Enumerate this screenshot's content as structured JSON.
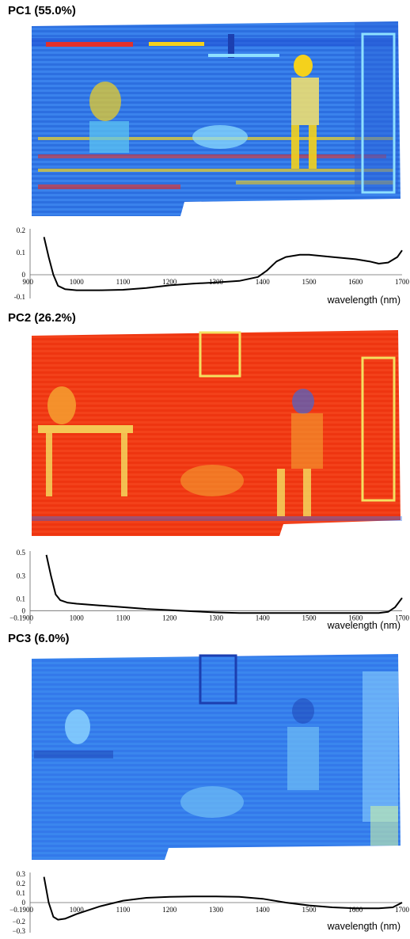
{
  "colors": {
    "pc1_base": "#2f78e8",
    "pc1_hot": "#e2302a",
    "pc1_warm": "#f4d11c",
    "pc2_base": "#f23a12",
    "pc2_cool": "#2a6cf0",
    "pc3_base": "#3a86ee",
    "pc3_light": "#8fd6ff",
    "curve": "#000000"
  },
  "panels": [
    {
      "title": "PC1 (55.0%)",
      "image_description_icon": "pc1-falsecolor-image",
      "chart_data": {
        "type": "line",
        "title": "",
        "xlabel": "wavelength (nm)",
        "ylabel": "",
        "xlim": [
          900,
          1700
        ],
        "ylim": [
          -0.1,
          0.2
        ],
        "x_ticks": [
          "900",
          "1000",
          "1100",
          "1200",
          "1300",
          "1400",
          "1500",
          "1600",
          "1700"
        ],
        "y_ticks": [
          "0.2",
          "0.1",
          "0",
          "-0.1"
        ],
        "series": [
          {
            "x": [
              930,
              940,
              950,
              960,
              975,
              1000,
              1050,
              1100,
              1150,
              1200,
              1250,
              1300,
              1350,
              1390,
              1410,
              1430,
              1450,
              1480,
              1500,
              1550,
              1600,
              1630,
              1650,
              1670,
              1690,
              1700
            ],
            "y": [
              0.17,
              0.08,
              0.0,
              -0.05,
              -0.065,
              -0.07,
              -0.07,
              -0.068,
              -0.06,
              -0.048,
              -0.04,
              -0.035,
              -0.028,
              -0.01,
              0.02,
              0.06,
              0.08,
              0.09,
              0.09,
              0.08,
              0.07,
              0.06,
              0.05,
              0.055,
              0.08,
              0.11
            ]
          }
        ]
      }
    },
    {
      "title": "PC2 (26.2%)",
      "image_description_icon": "pc2-falsecolor-image",
      "chart_data": {
        "type": "line",
        "title": "",
        "xlabel": "wavelength (nm)",
        "ylabel": "",
        "xlim": [
          900,
          1700
        ],
        "ylim": [
          -0.1,
          0.5
        ],
        "x_ticks": [
          "−0.1900",
          "1000",
          "1100",
          "1200",
          "1300",
          "1400",
          "1500",
          "1600",
          "1700"
        ],
        "y_ticks": [
          "0.5",
          "0.3",
          "0.1",
          "0"
        ],
        "series": [
          {
            "x": [
              935,
              945,
              955,
              965,
              980,
              1000,
              1050,
              1100,
              1150,
              1200,
              1250,
              1300,
              1350,
              1400,
              1450,
              1500,
              1550,
              1600,
              1650,
              1670,
              1685,
              1700
            ],
            "y": [
              0.48,
              0.3,
              0.14,
              0.09,
              0.07,
              0.06,
              0.045,
              0.03,
              0.015,
              0.005,
              -0.005,
              -0.015,
              -0.02,
              -0.02,
              -0.02,
              -0.02,
              -0.02,
              -0.02,
              -0.02,
              -0.01,
              0.03,
              0.11
            ]
          }
        ]
      }
    },
    {
      "title": "PC3 (6.0%)",
      "image_description_icon": "pc3-falsecolor-image",
      "chart_data": {
        "type": "line",
        "title": "",
        "xlabel": "wavelength (nm)",
        "ylabel": "",
        "xlim": [
          900,
          1700
        ],
        "ylim": [
          -0.3,
          0.3
        ],
        "x_ticks": [
          "−0.1900",
          "1000",
          "1100",
          "1200",
          "1300",
          "1400",
          "1500",
          "1600",
          "1700"
        ],
        "y_ticks": [
          "0.3",
          "0.2",
          "0.1",
          "0",
          "−0.2",
          "−0.3"
        ],
        "series": [
          {
            "x": [
              930,
              940,
              950,
              960,
              975,
              1000,
              1050,
              1100,
              1150,
              1200,
              1250,
              1300,
              1350,
              1400,
              1450,
              1500,
              1550,
              1600,
              1650,
              1680,
              1700
            ],
            "y": [
              0.27,
              0.0,
              -0.15,
              -0.18,
              -0.17,
              -0.12,
              -0.04,
              0.02,
              0.05,
              0.06,
              0.065,
              0.065,
              0.06,
              0.04,
              0.0,
              -0.03,
              -0.05,
              -0.06,
              -0.06,
              -0.05,
              0.0
            ]
          }
        ]
      }
    }
  ]
}
